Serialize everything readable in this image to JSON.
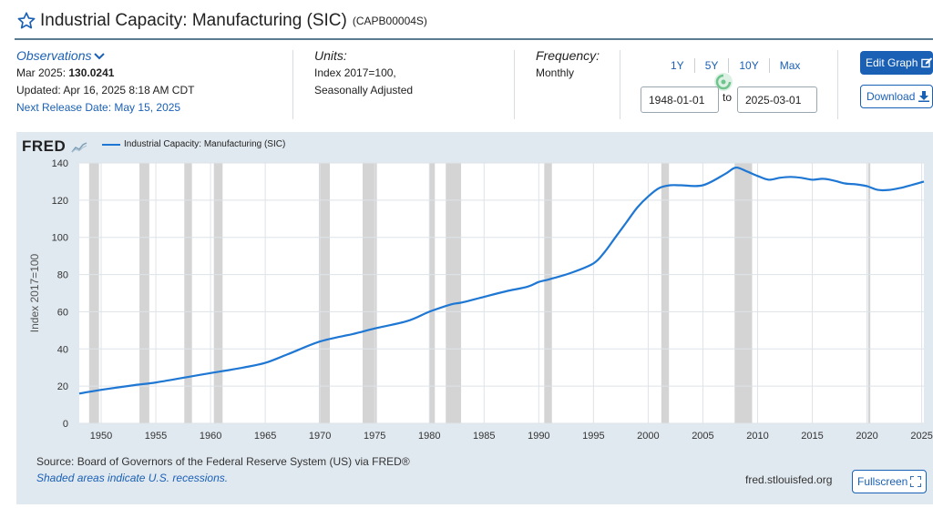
{
  "header": {
    "title": "Industrial Capacity: Manufacturing (SIC)",
    "series_id": "(CAPB00004S)"
  },
  "observations": {
    "label": "Observations",
    "date_label": "Mar 2025:",
    "latest_value": "130.0241",
    "updated": "Updated: Apr 16, 2025 8:18 AM CDT",
    "next_release": "Next Release Date: May 15, 2025"
  },
  "units": {
    "label": "Units:",
    "line1": "Index 2017=100,",
    "line2": "Seasonally Adjusted"
  },
  "frequency": {
    "label": "Frequency:",
    "value": "Monthly"
  },
  "range": {
    "buttons": [
      "1Y",
      "5Y",
      "10Y",
      "Max"
    ],
    "start": "1948-01-01",
    "to_label": "to",
    "end": "2025-03-01"
  },
  "actions": {
    "edit_graph": "Edit Graph",
    "download": "Download",
    "fullscreen": "Fullscreen"
  },
  "branding": {
    "logo": "FRED",
    "url": "fred.stlouisfed.org"
  },
  "footer": {
    "source": "Source: Board of Governors of the Federal Reserve System (US) via FRED®",
    "note": "Shaded areas indicate U.S. recessions."
  },
  "colors": {
    "line": "#1f77d4",
    "accent": "#1a60b5",
    "panel": "#e1e9f0",
    "recession": "#d4d4d4"
  },
  "icons": {
    "favorite": "star-outline-icon",
    "observations_toggle": "chevron-down-icon",
    "edit": "edit-icon",
    "download": "download-icon",
    "fullscreen": "fullscreen-icon",
    "loading": "spinner-icon"
  },
  "chart_data": {
    "type": "line",
    "legend": "Industrial Capacity: Manufacturing (SIC)",
    "legend_position": "top-left",
    "ylabel": "Index 2017=100",
    "xlabel": "",
    "xlim": [
      1948.0,
      2025.2
    ],
    "ylim": [
      0,
      140
    ],
    "grid": true,
    "yticks": [
      0,
      20,
      40,
      60,
      80,
      100,
      120,
      140
    ],
    "xticks": [
      1950,
      1955,
      1960,
      1965,
      1970,
      1975,
      1980,
      1985,
      1990,
      1995,
      2000,
      2005,
      2010,
      2015,
      2020,
      2025
    ],
    "recessions": [
      [
        1948.9,
        1949.8
      ],
      [
        1953.5,
        1954.4
      ],
      [
        1957.6,
        1958.3
      ],
      [
        1960.3,
        1961.1
      ],
      [
        1969.9,
        1970.9
      ],
      [
        1973.9,
        1975.2
      ],
      [
        1980.0,
        1980.5
      ],
      [
        1981.5,
        1982.9
      ],
      [
        1990.5,
        1991.2
      ],
      [
        2001.2,
        2001.9
      ],
      [
        2007.9,
        2009.5
      ],
      [
        2020.1,
        2020.3
      ]
    ],
    "series": [
      {
        "name": "Industrial Capacity: Manufacturing (SIC)",
        "x": [
          1948,
          1950,
          1953,
          1955,
          1958,
          1960,
          1963,
          1965,
          1967,
          1970,
          1973,
          1975,
          1978,
          1980,
          1982,
          1983,
          1985,
          1987,
          1989,
          1990,
          1991,
          1993,
          1995,
          1996,
          1997,
          1998,
          1999,
          2000,
          2001,
          2002,
          2003,
          2005,
          2007,
          2008,
          2009,
          2010,
          2011,
          2012,
          2013,
          2014,
          2015,
          2016,
          2017,
          2018,
          2019,
          2020,
          2021,
          2022,
          2023,
          2024,
          2025.2
        ],
        "y": [
          16,
          18,
          20.5,
          22,
          25,
          27,
          30,
          32.5,
          37,
          44,
          48,
          51,
          55,
          60,
          64,
          65,
          68,
          71,
          73.5,
          76,
          77.5,
          81,
          86,
          92,
          100,
          108,
          116,
          122,
          126.5,
          128,
          128,
          128,
          134,
          137.5,
          135.5,
          133,
          131,
          132,
          132.5,
          132,
          131,
          131.5,
          130.5,
          129,
          128.5,
          127.5,
          125.5,
          125.5,
          126.5,
          128,
          130
        ]
      }
    ]
  }
}
